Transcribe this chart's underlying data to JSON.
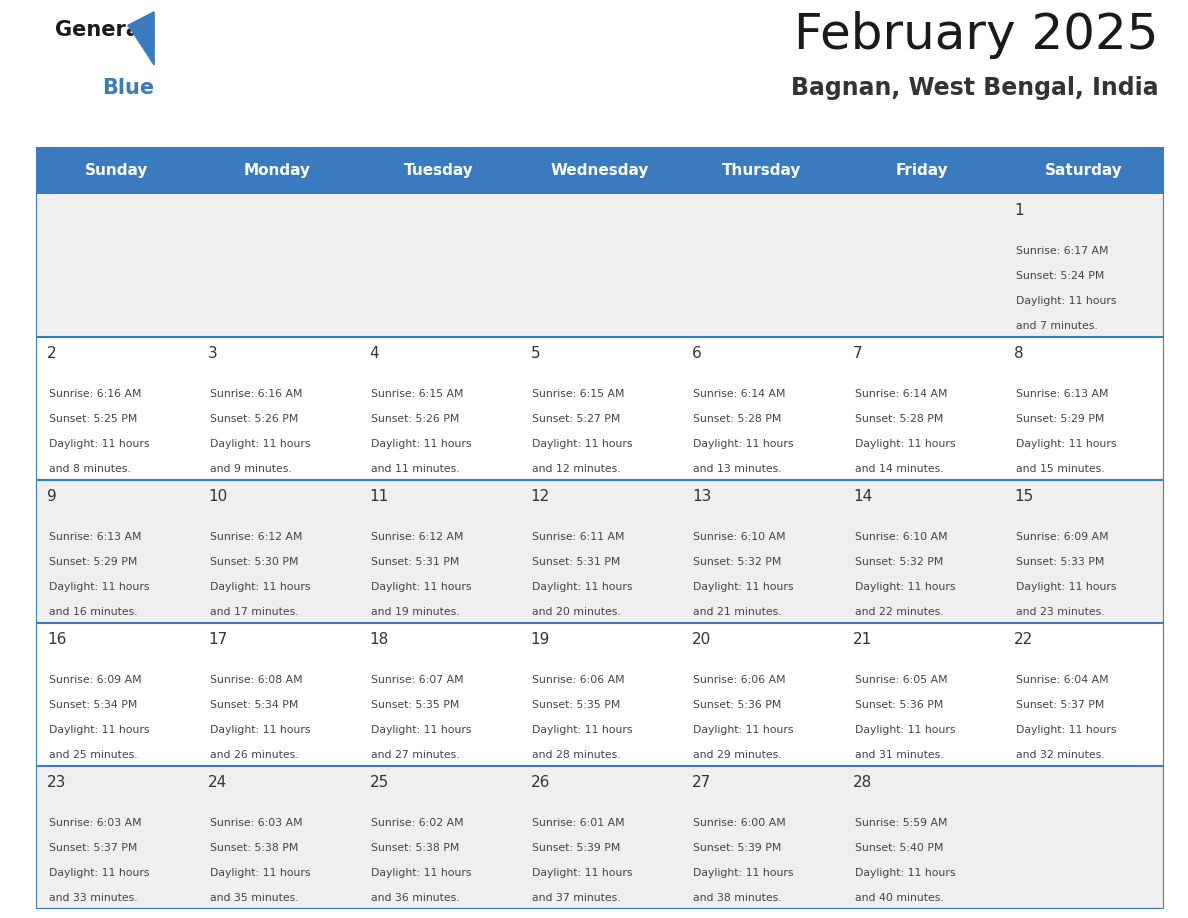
{
  "title": "February 2025",
  "subtitle": "Bagnan, West Bengal, India",
  "header_bg": "#3a7abf",
  "header_text": "#ffffff",
  "cell_bg_odd": "#efefef",
  "cell_bg_even": "#ffffff",
  "divider_color": "#3a7abf",
  "days_of_week": [
    "Sunday",
    "Monday",
    "Tuesday",
    "Wednesday",
    "Thursday",
    "Friday",
    "Saturday"
  ],
  "calendar": [
    [
      null,
      null,
      null,
      null,
      null,
      null,
      {
        "day": 1,
        "sunrise": "6:17 AM",
        "sunset": "5:24 PM",
        "daylight": "11 hours and 7 minutes."
      }
    ],
    [
      {
        "day": 2,
        "sunrise": "6:16 AM",
        "sunset": "5:25 PM",
        "daylight": "11 hours and 8 minutes."
      },
      {
        "day": 3,
        "sunrise": "6:16 AM",
        "sunset": "5:26 PM",
        "daylight": "11 hours and 9 minutes."
      },
      {
        "day": 4,
        "sunrise": "6:15 AM",
        "sunset": "5:26 PM",
        "daylight": "11 hours and 11 minutes."
      },
      {
        "day": 5,
        "sunrise": "6:15 AM",
        "sunset": "5:27 PM",
        "daylight": "11 hours and 12 minutes."
      },
      {
        "day": 6,
        "sunrise": "6:14 AM",
        "sunset": "5:28 PM",
        "daylight": "11 hours and 13 minutes."
      },
      {
        "day": 7,
        "sunrise": "6:14 AM",
        "sunset": "5:28 PM",
        "daylight": "11 hours and 14 minutes."
      },
      {
        "day": 8,
        "sunrise": "6:13 AM",
        "sunset": "5:29 PM",
        "daylight": "11 hours and 15 minutes."
      }
    ],
    [
      {
        "day": 9,
        "sunrise": "6:13 AM",
        "sunset": "5:29 PM",
        "daylight": "11 hours and 16 minutes."
      },
      {
        "day": 10,
        "sunrise": "6:12 AM",
        "sunset": "5:30 PM",
        "daylight": "11 hours and 17 minutes."
      },
      {
        "day": 11,
        "sunrise": "6:12 AM",
        "sunset": "5:31 PM",
        "daylight": "11 hours and 19 minutes."
      },
      {
        "day": 12,
        "sunrise": "6:11 AM",
        "sunset": "5:31 PM",
        "daylight": "11 hours and 20 minutes."
      },
      {
        "day": 13,
        "sunrise": "6:10 AM",
        "sunset": "5:32 PM",
        "daylight": "11 hours and 21 minutes."
      },
      {
        "day": 14,
        "sunrise": "6:10 AM",
        "sunset": "5:32 PM",
        "daylight": "11 hours and 22 minutes."
      },
      {
        "day": 15,
        "sunrise": "6:09 AM",
        "sunset": "5:33 PM",
        "daylight": "11 hours and 23 minutes."
      }
    ],
    [
      {
        "day": 16,
        "sunrise": "6:09 AM",
        "sunset": "5:34 PM",
        "daylight": "11 hours and 25 minutes."
      },
      {
        "day": 17,
        "sunrise": "6:08 AM",
        "sunset": "5:34 PM",
        "daylight": "11 hours and 26 minutes."
      },
      {
        "day": 18,
        "sunrise": "6:07 AM",
        "sunset": "5:35 PM",
        "daylight": "11 hours and 27 minutes."
      },
      {
        "day": 19,
        "sunrise": "6:06 AM",
        "sunset": "5:35 PM",
        "daylight": "11 hours and 28 minutes."
      },
      {
        "day": 20,
        "sunrise": "6:06 AM",
        "sunset": "5:36 PM",
        "daylight": "11 hours and 29 minutes."
      },
      {
        "day": 21,
        "sunrise": "6:05 AM",
        "sunset": "5:36 PM",
        "daylight": "11 hours and 31 minutes."
      },
      {
        "day": 22,
        "sunrise": "6:04 AM",
        "sunset": "5:37 PM",
        "daylight": "11 hours and 32 minutes."
      }
    ],
    [
      {
        "day": 23,
        "sunrise": "6:03 AM",
        "sunset": "5:37 PM",
        "daylight": "11 hours and 33 minutes."
      },
      {
        "day": 24,
        "sunrise": "6:03 AM",
        "sunset": "5:38 PM",
        "daylight": "11 hours and 35 minutes."
      },
      {
        "day": 25,
        "sunrise": "6:02 AM",
        "sunset": "5:38 PM",
        "daylight": "11 hours and 36 minutes."
      },
      {
        "day": 26,
        "sunrise": "6:01 AM",
        "sunset": "5:39 PM",
        "daylight": "11 hours and 37 minutes."
      },
      {
        "day": 27,
        "sunrise": "6:00 AM",
        "sunset": "5:39 PM",
        "daylight": "11 hours and 38 minutes."
      },
      {
        "day": 28,
        "sunrise": "5:59 AM",
        "sunset": "5:40 PM",
        "daylight": "11 hours and 40 minutes."
      },
      null
    ]
  ],
  "logo_general_color": "#1a1a1a",
  "logo_blue_color": "#3a7abf",
  "title_color": "#1a1a1a",
  "subtitle_color": "#333333",
  "day_number_color": "#333333",
  "cell_text_color": "#444444"
}
